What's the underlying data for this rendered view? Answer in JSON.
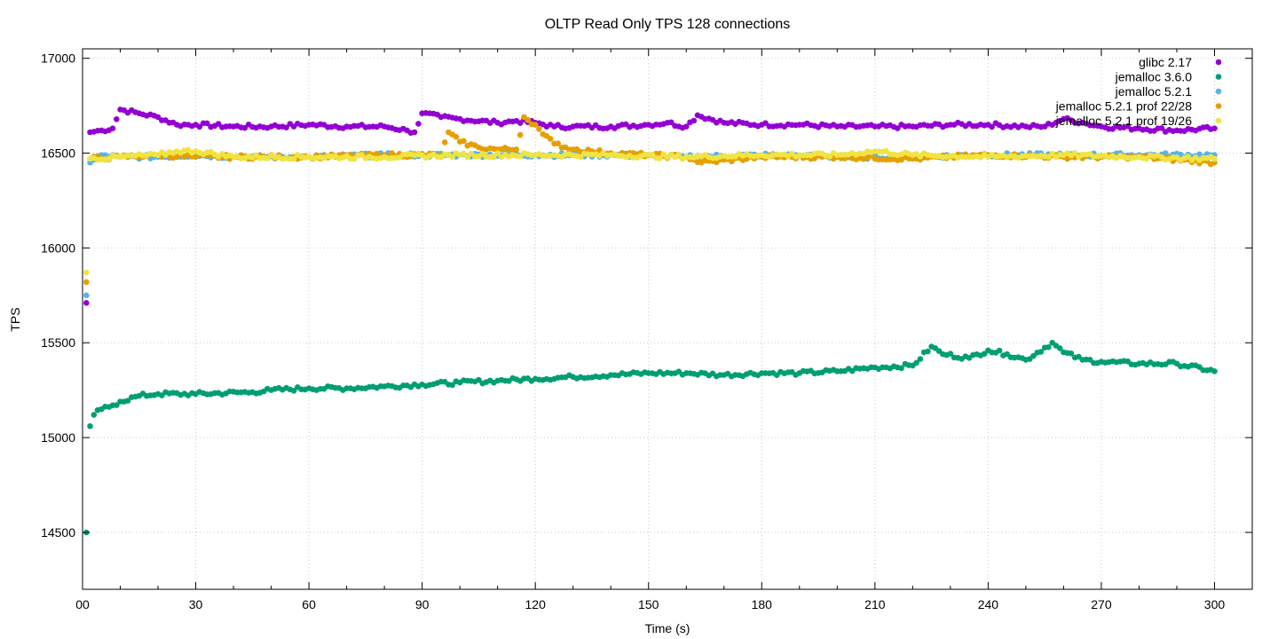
{
  "chart_data": {
    "type": "scatter",
    "title": "OLTP Read Only TPS 128 connections",
    "xlabel": "Time (s)",
    "ylabel": "TPS",
    "xlim": [
      0,
      310
    ],
    "ylim": [
      14200,
      17050
    ],
    "x_ticks": [
      0,
      30,
      60,
      90,
      120,
      150,
      180,
      210,
      240,
      270,
      300
    ],
    "x_tick_labels": [
      "00",
      "30",
      "60",
      "90",
      "120",
      "150",
      "180",
      "210",
      "240",
      "270",
      "300"
    ],
    "y_ticks": [
      14500,
      15000,
      15500,
      16000,
      16500,
      17000
    ],
    "grid": true,
    "legend_position": "top-right",
    "series": [
      {
        "name": "glibc 2.17",
        "color": "#9400d3",
        "points": [
          [
            1,
            15710
          ],
          [
            2,
            16610
          ],
          [
            5,
            16620
          ],
          [
            8,
            16630
          ],
          [
            10,
            16730
          ],
          [
            15,
            16710
          ],
          [
            20,
            16690
          ],
          [
            25,
            16650
          ],
          [
            30,
            16650
          ],
          [
            40,
            16640
          ],
          [
            50,
            16640
          ],
          [
            60,
            16650
          ],
          [
            70,
            16640
          ],
          [
            80,
            16640
          ],
          [
            86,
            16620
          ],
          [
            88,
            16610
          ],
          [
            90,
            16710
          ],
          [
            95,
            16690
          ],
          [
            100,
            16680
          ],
          [
            110,
            16660
          ],
          [
            115,
            16670
          ],
          [
            120,
            16660
          ],
          [
            125,
            16640
          ],
          [
            130,
            16640
          ],
          [
            140,
            16640
          ],
          [
            150,
            16650
          ],
          [
            155,
            16660
          ],
          [
            160,
            16640
          ],
          [
            163,
            16700
          ],
          [
            170,
            16660
          ],
          [
            180,
            16650
          ],
          [
            190,
            16650
          ],
          [
            200,
            16640
          ],
          [
            210,
            16640
          ],
          [
            220,
            16640
          ],
          [
            230,
            16650
          ],
          [
            240,
            16650
          ],
          [
            250,
            16640
          ],
          [
            255,
            16640
          ],
          [
            260,
            16680
          ],
          [
            265,
            16660
          ],
          [
            270,
            16640
          ],
          [
            280,
            16630
          ],
          [
            290,
            16620
          ],
          [
            300,
            16630
          ]
        ]
      },
      {
        "name": "jemalloc 3.6.0",
        "color": "#009e73",
        "points": [
          [
            1,
            14500
          ],
          [
            2,
            15060
          ],
          [
            3,
            15120
          ],
          [
            5,
            15150
          ],
          [
            8,
            15170
          ],
          [
            10,
            15190
          ],
          [
            15,
            15220
          ],
          [
            20,
            15230
          ],
          [
            30,
            15230
          ],
          [
            45,
            15240
          ],
          [
            50,
            15250
          ],
          [
            60,
            15260
          ],
          [
            70,
            15260
          ],
          [
            80,
            15270
          ],
          [
            90,
            15280
          ],
          [
            100,
            15290
          ],
          [
            110,
            15300
          ],
          [
            120,
            15310
          ],
          [
            130,
            15320
          ],
          [
            140,
            15330
          ],
          [
            150,
            15340
          ],
          [
            160,
            15340
          ],
          [
            170,
            15330
          ],
          [
            180,
            15340
          ],
          [
            190,
            15340
          ],
          [
            200,
            15350
          ],
          [
            210,
            15370
          ],
          [
            220,
            15380
          ],
          [
            225,
            15480
          ],
          [
            228,
            15440
          ],
          [
            235,
            15420
          ],
          [
            240,
            15460
          ],
          [
            245,
            15440
          ],
          [
            250,
            15410
          ],
          [
            257,
            15500
          ],
          [
            260,
            15450
          ],
          [
            265,
            15410
          ],
          [
            270,
            15400
          ],
          [
            280,
            15390
          ],
          [
            290,
            15390
          ],
          [
            300,
            15350
          ]
        ]
      },
      {
        "name": "jemalloc 5.2.1",
        "color": "#56b4e9",
        "points": [
          [
            1,
            15750
          ],
          [
            2,
            16450
          ],
          [
            5,
            16490
          ],
          [
            10,
            16480
          ],
          [
            20,
            16480
          ],
          [
            30,
            16490
          ],
          [
            40,
            16480
          ],
          [
            60,
            16480
          ],
          [
            80,
            16490
          ],
          [
            100,
            16490
          ],
          [
            120,
            16490
          ],
          [
            140,
            16490
          ],
          [
            160,
            16480
          ],
          [
            180,
            16490
          ],
          [
            200,
            16480
          ],
          [
            220,
            16480
          ],
          [
            240,
            16490
          ],
          [
            260,
            16490
          ],
          [
            280,
            16490
          ],
          [
            300,
            16490
          ]
        ]
      },
      {
        "name": "jemalloc 5.2.1 prof 22/28",
        "color": "#e69f00",
        "points": [
          [
            1,
            15820
          ],
          [
            2,
            16470
          ],
          [
            10,
            16480
          ],
          [
            20,
            16490
          ],
          [
            30,
            16480
          ],
          [
            40,
            16480
          ],
          [
            60,
            16480
          ],
          [
            80,
            16490
          ],
          [
            95,
            16490
          ],
          [
            97,
            16610
          ],
          [
            100,
            16560
          ],
          [
            105,
            16530
          ],
          [
            110,
            16520
          ],
          [
            115,
            16520
          ],
          [
            117,
            16690
          ],
          [
            120,
            16650
          ],
          [
            122,
            16600
          ],
          [
            125,
            16550
          ],
          [
            130,
            16520
          ],
          [
            135,
            16510
          ],
          [
            140,
            16500
          ],
          [
            150,
            16490
          ],
          [
            160,
            16480
          ],
          [
            164,
            16450
          ],
          [
            180,
            16480
          ],
          [
            200,
            16480
          ],
          [
            220,
            16470
          ],
          [
            240,
            16490
          ],
          [
            260,
            16480
          ],
          [
            280,
            16480
          ],
          [
            300,
            16450
          ]
        ]
      },
      {
        "name": "jemalloc 5.2.1 prof 19/26",
        "color": "#f0e442",
        "points": [
          [
            1,
            15870
          ],
          [
            2,
            16470
          ],
          [
            10,
            16480
          ],
          [
            20,
            16490
          ],
          [
            25,
            16510
          ],
          [
            30,
            16510
          ],
          [
            40,
            16480
          ],
          [
            60,
            16480
          ],
          [
            80,
            16480
          ],
          [
            100,
            16490
          ],
          [
            120,
            16490
          ],
          [
            140,
            16490
          ],
          [
            160,
            16480
          ],
          [
            180,
            16490
          ],
          [
            200,
            16490
          ],
          [
            210,
            16510
          ],
          [
            220,
            16490
          ],
          [
            240,
            16480
          ],
          [
            260,
            16490
          ],
          [
            280,
            16480
          ],
          [
            300,
            16470
          ]
        ]
      }
    ]
  }
}
